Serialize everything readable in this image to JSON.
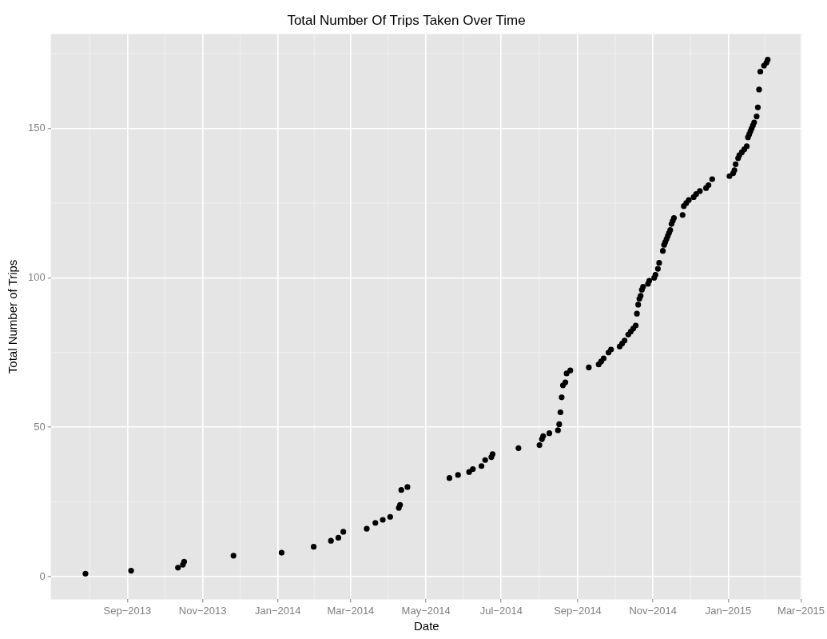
{
  "chart_data": {
    "type": "scatter",
    "title": "Total Number Of Trips Taken Over Time",
    "xlabel": "Date",
    "ylabel": "Total Number of Trips",
    "color": "#000000",
    "marker": "circle",
    "grid": true,
    "xlim": [
      "2013-07-01",
      "2015-03-02"
    ],
    "xticks": [
      {
        "value": "2013-09-01",
        "label": "Sep−2013"
      },
      {
        "value": "2013-11-01",
        "label": "Nov−2013"
      },
      {
        "value": "2014-01-01",
        "label": "Jan−2014"
      },
      {
        "value": "2014-03-01",
        "label": "Mar−2014"
      },
      {
        "value": "2014-05-01",
        "label": "May−2014"
      },
      {
        "value": "2014-07-01",
        "label": "Jul−2014"
      },
      {
        "value": "2014-09-01",
        "label": "Sep−2014"
      },
      {
        "value": "2014-11-01",
        "label": "Nov−2014"
      },
      {
        "value": "2015-01-01",
        "label": "Jan−2015"
      },
      {
        "value": "2015-03-01",
        "label": "Mar−2015"
      }
    ],
    "ylim": [
      -7.6,
      181.6
    ],
    "yticks": [
      0,
      50,
      100,
      150
    ],
    "x": [
      "2013-07-29",
      "2013-09-04",
      "2013-10-12",
      "2013-10-16",
      "2013-10-17",
      "2013-11-26",
      "2014-01-04",
      "2014-01-30",
      "2014-02-13",
      "2014-02-19",
      "2014-02-23",
      "2014-03-14",
      "2014-03-21",
      "2014-03-27",
      "2014-04-02",
      "2014-04-09",
      "2014-04-10",
      "2014-04-11",
      "2014-04-16",
      "2014-05-20",
      "2014-05-27",
      "2014-06-05",
      "2014-06-08",
      "2014-06-15",
      "2014-06-18",
      "2014-06-23",
      "2014-06-24",
      "2014-07-15",
      "2014-08-01",
      "2014-08-03",
      "2014-08-04",
      "2014-08-09",
      "2014-08-16",
      "2014-08-17",
      "2014-08-18",
      "2014-08-19",
      "2014-08-20",
      "2014-08-22",
      "2014-08-23",
      "2014-08-26",
      "2014-09-10",
      "2014-09-18",
      "2014-09-20",
      "2014-09-22",
      "2014-09-26",
      "2014-09-28",
      "2014-10-05",
      "2014-10-07",
      "2014-10-09",
      "2014-10-12",
      "2014-10-14",
      "2014-10-16",
      "2014-10-18",
      "2014-10-19",
      "2014-10-20",
      "2014-10-21",
      "2014-10-22",
      "2014-10-23",
      "2014-10-24",
      "2014-10-28",
      "2014-10-29",
      "2014-11-02",
      "2014-11-03",
      "2014-11-05",
      "2014-11-06",
      "2014-11-09",
      "2014-11-10",
      "2014-11-11",
      "2014-11-12",
      "2014-11-13",
      "2014-11-14",
      "2014-11-15",
      "2014-11-16",
      "2014-11-17",
      "2014-11-18",
      "2014-11-25",
      "2014-11-26",
      "2014-11-28",
      "2014-11-30",
      "2014-12-04",
      "2014-12-06",
      "2014-12-09",
      "2014-12-14",
      "2014-12-16",
      "2014-12-19",
      "2015-01-02",
      "2015-01-05",
      "2015-01-06",
      "2015-01-07",
      "2015-01-09",
      "2015-01-10",
      "2015-01-12",
      "2015-01-14",
      "2015-01-16",
      "2015-01-17",
      "2015-01-18",
      "2015-01-19",
      "2015-01-20",
      "2015-01-21",
      "2015-01-22",
      "2015-01-24",
      "2015-01-25",
      "2015-01-26",
      "2015-01-27",
      "2015-01-30",
      "2015-02-01",
      "2015-02-02"
    ],
    "values": [
      1,
      2,
      3,
      4,
      5,
      7,
      8,
      10,
      12,
      13,
      15,
      16,
      18,
      19,
      20,
      23,
      24,
      29,
      30,
      33,
      34,
      35,
      36,
      37,
      39,
      40,
      41,
      43,
      44,
      46,
      47,
      48,
      49,
      51,
      55,
      60,
      64,
      65,
      68,
      69,
      70,
      71,
      72,
      73,
      75,
      76,
      77,
      78,
      79,
      81,
      82,
      83,
      84,
      88,
      91,
      93,
      94,
      96,
      97,
      98,
      99,
      100,
      101,
      103,
      105,
      109,
      111,
      112,
      113,
      114,
      115,
      116,
      118,
      119,
      120,
      121,
      124,
      125,
      126,
      127,
      128,
      129,
      130,
      131,
      133,
      134,
      135,
      136,
      138,
      140,
      141,
      142,
      143,
      144,
      147,
      148,
      149,
      150,
      151,
      152,
      154,
      157,
      163,
      169,
      171,
      172,
      173
    ]
  }
}
